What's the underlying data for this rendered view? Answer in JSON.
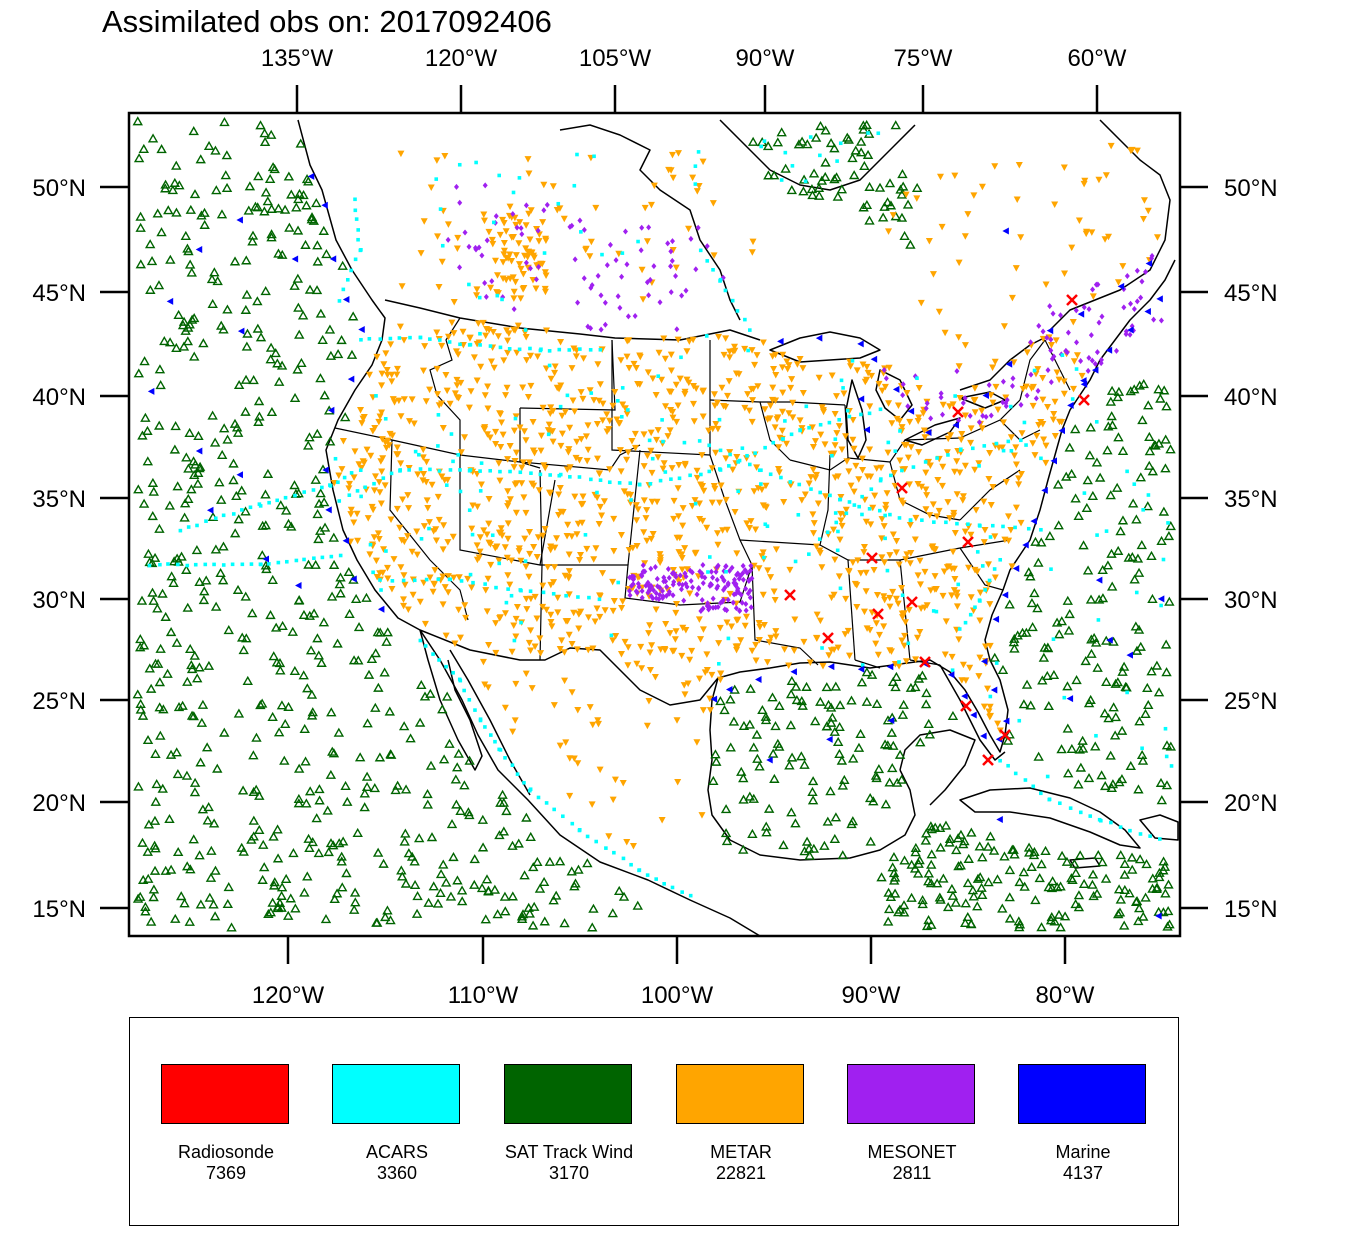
{
  "title": "Assimilated obs on: 2017092406",
  "map": {
    "projection": "Lambert conformal",
    "top_lon_labels": [
      "135°W",
      "120°W",
      "105°W",
      "90°W",
      "75°W",
      "60°W"
    ],
    "bottom_lon_labels": [
      "120°W",
      "110°W",
      "100°W",
      "90°W",
      "80°W"
    ],
    "left_lat_labels": [
      "50°N",
      "45°N",
      "40°N",
      "35°N",
      "30°N",
      "25°N",
      "20°N",
      "15°N"
    ],
    "right_lat_labels": [
      "50°N",
      "45°N",
      "40°N",
      "35°N",
      "30°N",
      "25°N",
      "20°N",
      "15°N"
    ],
    "lat_range": [
      14,
      53
    ],
    "lon_range": [
      -128,
      -55
    ]
  },
  "legend": [
    {
      "name": "Radiosonde",
      "count": "7369",
      "color": "#ff0000",
      "symbol": "cross"
    },
    {
      "name": "ACARS",
      "count": "3360",
      "color": "#00ffff",
      "symbol": "dot"
    },
    {
      "name": "SAT Track Wind",
      "count": "3170",
      "color": "#006400",
      "symbol": "triangle-open"
    },
    {
      "name": "METAR",
      "count": "22821",
      "color": "#ffa500",
      "symbol": "triangle-down"
    },
    {
      "name": "MESONET",
      "count": "2811",
      "color": "#a020f0",
      "symbol": "diamond"
    },
    {
      "name": "Marine",
      "count": "4137",
      "color": "#0000ff",
      "symbol": "triangle-left"
    }
  ],
  "observation_regions": {
    "SAT Track Wind": [
      "Eastern Pacific",
      "Gulf of Mexico",
      "Caribbean",
      "Western Atlantic",
      "Hudson Bay"
    ],
    "METAR": [
      "Continental US",
      "Southern Canada",
      "Northern Mexico"
    ],
    "MESONET": [
      "Oklahoma",
      "Great Lakes",
      "New England",
      "Southern Canada"
    ],
    "ACARS": [
      "Flight tracks over US and oceans"
    ],
    "Marine": [
      "US coastlines",
      "Great Lakes"
    ],
    "Radiosonde": [
      "Southeast US",
      "East Coast"
    ]
  }
}
